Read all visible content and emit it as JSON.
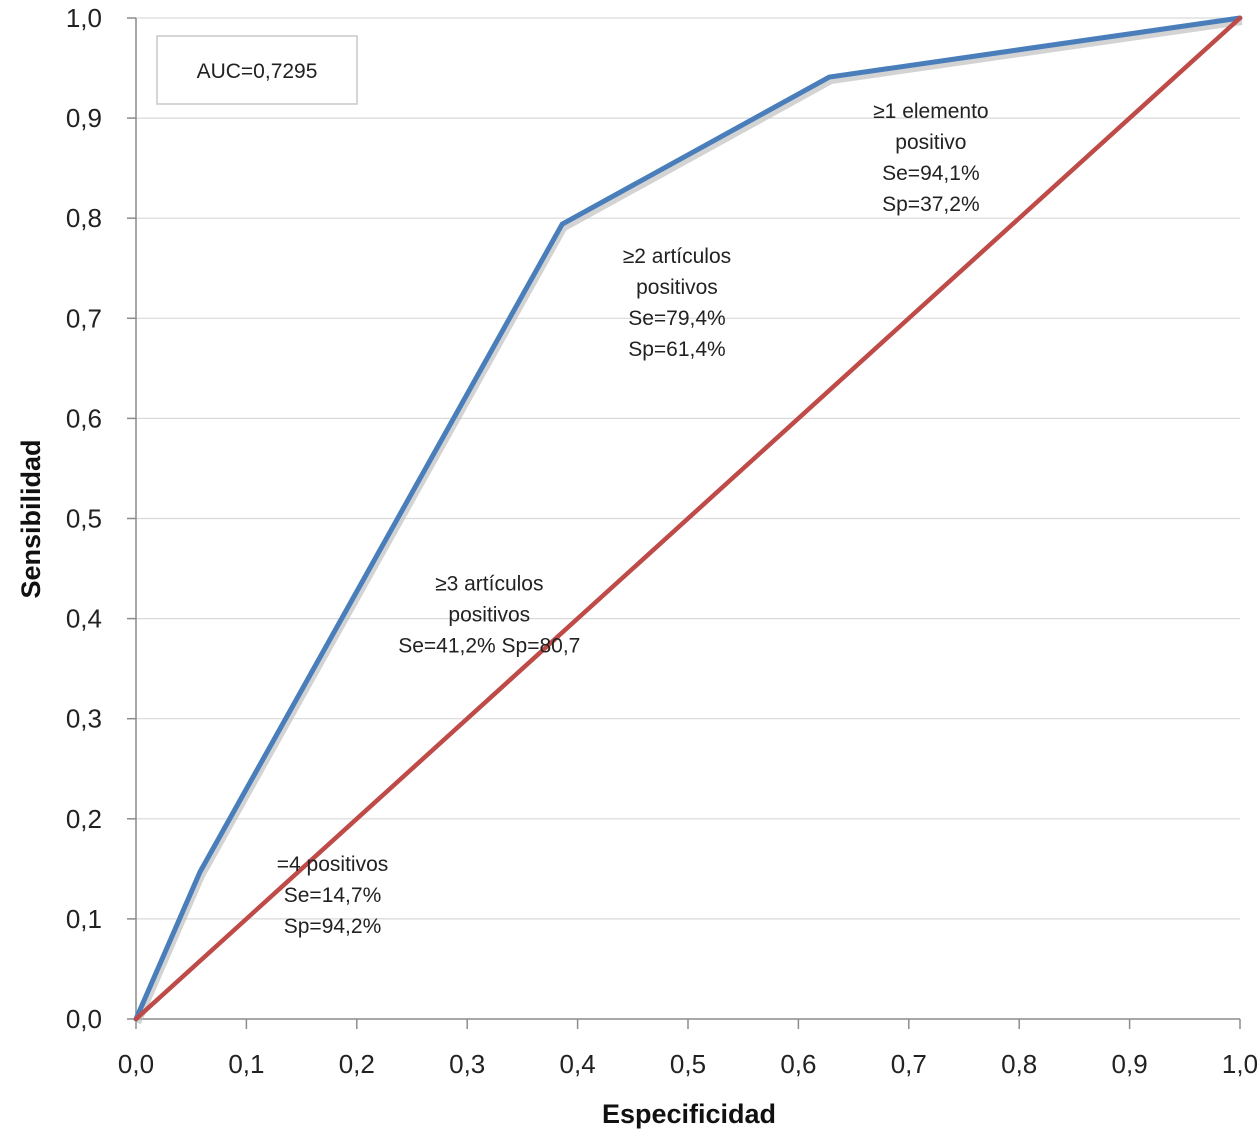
{
  "chart_data": {
    "type": "line",
    "title": "",
    "xlabel": "Especificidad",
    "ylabel": "Sensibilidad",
    "xlim": [
      0,
      1
    ],
    "ylim": [
      0,
      1
    ],
    "x_ticks": [
      "0,0",
      "0,1",
      "0,2",
      "0,3",
      "0,4",
      "0,5",
      "0,6",
      "0,7",
      "0,8",
      "0,9",
      "1,0"
    ],
    "y_ticks": [
      "0,0",
      "0,1",
      "0,2",
      "0,3",
      "0,4",
      "0,5",
      "0,6",
      "0,7",
      "0,8",
      "0,9",
      "1,0"
    ],
    "grid": true,
    "series": [
      {
        "color": "#4a7ebb",
        "x": [
          0,
          0.058,
          0.386,
          0.628,
          1.0
        ],
        "y": [
          0,
          0.147,
          0.794,
          0.941,
          1.0
        ]
      },
      {
        "color": "#be4b48",
        "x": [
          0,
          1.0
        ],
        "y": [
          0,
          1.0
        ]
      }
    ],
    "auc_label": "AUC=0,7295",
    "annotations": [
      {
        "lines": [
          "≥1 elemento",
          "positivo",
          "Se=94,1%",
          "Sp=37,2%"
        ],
        "x": 0.72,
        "y": 0.9
      },
      {
        "lines": [
          "≥2 artículos",
          "positivos",
          "Se=79,4%",
          "Sp=61,4%"
        ],
        "x": 0.49,
        "y": 0.755
      },
      {
        "lines": [
          "≥3 artículos",
          "positivos",
          "Se=41,2% Sp=80,7"
        ],
        "x": 0.32,
        "y": 0.428
      },
      {
        "lines": [
          "=4 positivos",
          "Se=14,7%",
          "Sp=94,2%"
        ],
        "x": 0.178,
        "y": 0.148
      }
    ]
  }
}
